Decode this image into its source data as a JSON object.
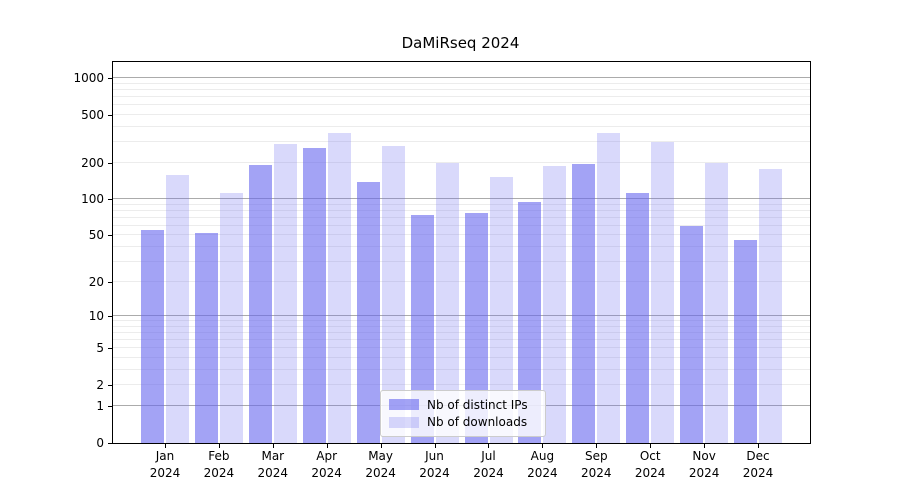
{
  "chart_data": {
    "type": "bar",
    "title": "DaMiRseq 2024",
    "categories": [
      "Jan",
      "Feb",
      "Mar",
      "Apr",
      "May",
      "Jun",
      "Jul",
      "Aug",
      "Sep",
      "Oct",
      "Nov",
      "Dec"
    ],
    "xtick_year": "2024",
    "series": [
      {
        "name": "Nb of distinct IPs",
        "color": "rgba(102,102,238,0.6)",
        "values": [
          56,
          52,
          193,
          268,
          140,
          74,
          77,
          96,
          195,
          114,
          60,
          46
        ]
      },
      {
        "name": "Nb of downloads",
        "color": "rgba(102,102,238,0.25)",
        "values": [
          160,
          114,
          287,
          352,
          277,
          199,
          152,
          188,
          355,
          297,
          199,
          180
        ]
      }
    ],
    "yscale": "log1p",
    "ylim": [
      0,
      1360
    ],
    "yticks_labeled": [
      0,
      1,
      2,
      5,
      10,
      20,
      50,
      100,
      200,
      500,
      1000
    ],
    "gridlines_major": [
      1,
      10,
      100,
      1000
    ],
    "gridlines_minor": [
      2,
      3,
      4,
      5,
      6,
      7,
      8,
      9,
      20,
      30,
      40,
      50,
      60,
      70,
      80,
      90,
      200,
      300,
      400,
      500,
      600,
      700,
      800,
      900
    ],
    "legend_position": "lower center",
    "grid": "on"
  },
  "colors": {
    "bar_base": "#6666ee",
    "major_grid": "#ababab",
    "minor_grid": "#ececec",
    "axis": "#000000",
    "legend_border": "#cccccc"
  }
}
